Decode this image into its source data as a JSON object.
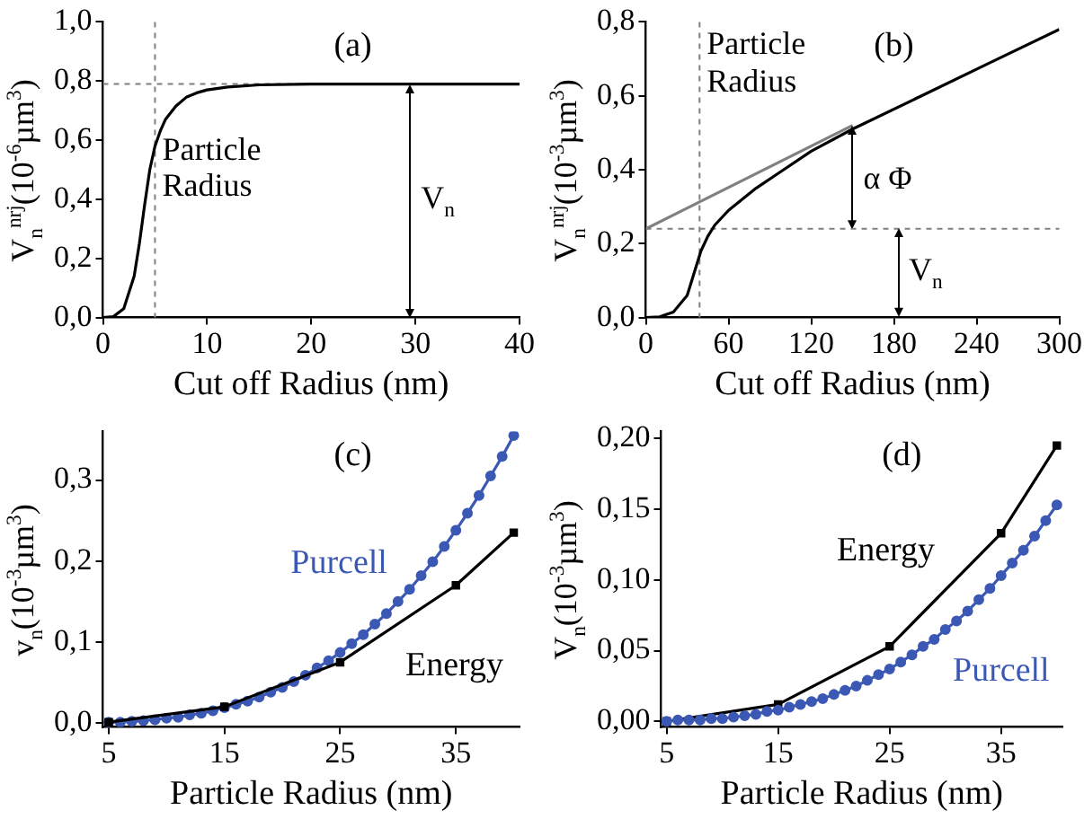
{
  "chart_data": [
    {
      "type": "line",
      "title": "(a)",
      "xlabel": "Cut off Radius (nm)",
      "ylabel": "V$_{n}$$^{nrj}$(10$^{-6}$µm$^{3}$)",
      "series": [
        {
          "color": "#000000",
          "marker": "none",
          "x": [
            0,
            1,
            2,
            3,
            3.5,
            4,
            4.5,
            5,
            5.5,
            6,
            7,
            8,
            9,
            10,
            12,
            15,
            20,
            30,
            40
          ],
          "values": [
            0,
            0.003,
            0.03,
            0.14,
            0.25,
            0.38,
            0.5,
            0.58,
            0.63,
            0.67,
            0.715,
            0.745,
            0.76,
            0.77,
            0.78,
            0.787,
            0.79,
            0.79,
            0.79
          ]
        }
      ],
      "xlim": [
        0,
        40
      ],
      "xticks": [
        0,
        10,
        20,
        30,
        40
      ],
      "ylim": [
        0,
        1.0
      ],
      "yticks": [
        {
          "value": 0,
          "label": "0,0"
        },
        {
          "value": 0.2,
          "label": "0,2"
        },
        {
          "value": 0.4,
          "label": "0,4"
        },
        {
          "value": 0.6,
          "label": "0,6"
        },
        {
          "value": 0.8,
          "label": "0,8"
        },
        {
          "value": 1.0,
          "label": "1,0"
        }
      ],
      "ref_lines": [
        {
          "axis": "x",
          "value": 5,
          "label": "Particle Radius",
          "line_style": "dashed",
          "color": "#808080"
        },
        {
          "axis": "y",
          "value": 0.79,
          "line_style": "dashed",
          "color": "#808080"
        }
      ],
      "annotations": [
        {
          "text": "V$_{n}$",
          "x": 29.5,
          "y": 0.79
        }
      ],
      "grid": false,
      "legend": false
    },
    {
      "type": "line",
      "title": "(b)",
      "xlabel": "Cut off Radius (nm)",
      "ylabel": "V$_{n}$$^{nrj}$(10$^{-3}$µm$^{3}$)",
      "series": [
        {
          "color": "#000000",
          "marker": "none",
          "x": [
            0,
            10,
            20,
            30,
            35,
            40,
            45,
            50,
            60,
            80,
            100,
            120,
            150,
            200,
            250,
            300
          ],
          "values": [
            0,
            0.002,
            0.015,
            0.06,
            0.12,
            0.18,
            0.22,
            0.25,
            0.29,
            0.35,
            0.4,
            0.45,
            0.51,
            0.6,
            0.69,
            0.78
          ]
        },
        {
          "type": "line",
          "color": "#808080",
          "marker": "none",
          "x": [
            0,
            150
          ],
          "values": [
            0.24,
            0.52
          ]
        }
      ],
      "xlim": [
        0,
        300
      ],
      "xticks": [
        0,
        60,
        120,
        180,
        240,
        300
      ],
      "ylim": [
        0,
        0.8
      ],
      "yticks": [
        {
          "value": 0,
          "label": "0,0"
        },
        {
          "value": 0.2,
          "label": "0,2"
        },
        {
          "value": 0.4,
          "label": "0,4"
        },
        {
          "value": 0.6,
          "label": "0,6"
        },
        {
          "value": 0.8,
          "label": "0,8"
        }
      ],
      "ref_lines": [
        {
          "axis": "x",
          "value": 39,
          "label": "Particle Radius",
          "line_style": "dashed",
          "color": "#808080"
        },
        {
          "axis": "y",
          "value": 0.24,
          "line_style": "dashed",
          "color": "#808080"
        }
      ],
      "annotations": [
        {
          "text": "α Φ",
          "x": 150,
          "y": 0.52
        },
        {
          "text": "V$_{n}$",
          "x": 183,
          "y": 0.24
        }
      ],
      "grid": false,
      "legend": false
    },
    {
      "type": "line",
      "title": "(c)",
      "xlabel": "Particle Radius (nm)",
      "ylabel": "v$_{n}$(10$^{-3}$µm$^{3}$)",
      "series": [
        {
          "name": "Purcell",
          "color": "#3b58b4",
          "marker": "circle",
          "x": [
            5,
            6,
            7,
            8,
            9,
            10,
            11,
            12,
            13,
            14,
            15,
            16,
            17,
            18,
            19,
            20,
            21,
            22,
            23,
            24,
            25,
            26,
            27,
            28,
            29,
            30,
            31,
            32,
            33,
            34,
            35,
            36,
            37,
            38,
            39,
            40
          ],
          "values": [
            0.001,
            0.001,
            0.002,
            0.003,
            0.004,
            0.006,
            0.007,
            0.01,
            0.012,
            0.015,
            0.019,
            0.023,
            0.027,
            0.032,
            0.038,
            0.044,
            0.051,
            0.059,
            0.068,
            0.077,
            0.087,
            0.098,
            0.109,
            0.122,
            0.135,
            0.15,
            0.165,
            0.182,
            0.199,
            0.218,
            0.238,
            0.259,
            0.281,
            0.305,
            0.329,
            0.355
          ]
        },
        {
          "name": "Energy",
          "color": "#000000",
          "marker": "square",
          "x": [
            5,
            15,
            25,
            35,
            40
          ],
          "values": [
            0.001,
            0.02,
            0.075,
            0.17,
            0.235
          ]
        }
      ],
      "xlim": [
        4.5,
        40.5
      ],
      "xticks": [
        5,
        15,
        25,
        35
      ],
      "ylim": [
        -0.005,
        0.36
      ],
      "yticks": [
        {
          "value": 0,
          "label": "0,0"
        },
        {
          "value": 0.1,
          "label": "0,1"
        },
        {
          "value": 0.2,
          "label": "0,2"
        },
        {
          "value": 0.3,
          "label": "0,3"
        }
      ],
      "grid": false,
      "legend": false
    },
    {
      "type": "line",
      "title": "(d)",
      "xlabel": "Particle Radius (nm)",
      "ylabel": "V$_{n}$(10$^{-3}$µm$^{3}$)",
      "series": [
        {
          "name": "Energy",
          "color": "#000000",
          "marker": "square",
          "x": [
            5,
            15,
            25,
            35,
            40
          ],
          "values": [
            0.0,
            0.012,
            0.053,
            0.133,
            0.195
          ]
        },
        {
          "name": "Purcell",
          "color": "#3b58b4",
          "marker": "circle",
          "x": [
            5,
            6,
            7,
            8,
            9,
            10,
            11,
            12,
            13,
            14,
            15,
            16,
            17,
            18,
            19,
            20,
            21,
            22,
            23,
            24,
            25,
            26,
            27,
            28,
            29,
            30,
            31,
            32,
            33,
            34,
            35,
            36,
            37,
            38,
            39,
            40
          ],
          "values": [
            0.0,
            0.001,
            0.001,
            0.001,
            0.002,
            0.002,
            0.003,
            0.004,
            0.005,
            0.007,
            0.008,
            0.01,
            0.012,
            0.014,
            0.016,
            0.019,
            0.022,
            0.025,
            0.029,
            0.033,
            0.037,
            0.042,
            0.047,
            0.053,
            0.058,
            0.065,
            0.071,
            0.078,
            0.086,
            0.094,
            0.103,
            0.112,
            0.121,
            0.131,
            0.142,
            0.153
          ]
        }
      ],
      "xlim": [
        4.5,
        40.5
      ],
      "xticks": [
        5,
        15,
        25,
        35
      ],
      "ylim": [
        -0.004,
        0.205
      ],
      "yticks": [
        {
          "value": 0,
          "label": "0,00"
        },
        {
          "value": 0.05,
          "label": "0,05"
        },
        {
          "value": 0.1,
          "label": "0,10"
        },
        {
          "value": 0.15,
          "label": "0,15"
        },
        {
          "value": 0.2,
          "label": "0,20"
        }
      ],
      "grid": false,
      "legend": false
    }
  ]
}
